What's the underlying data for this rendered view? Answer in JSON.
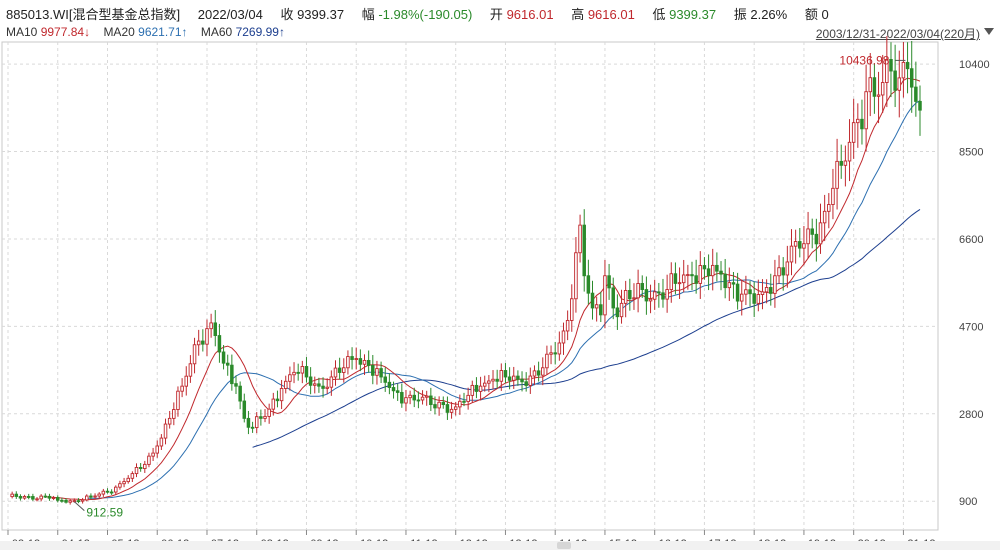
{
  "header": {
    "code": "885013.WI[混合型基金总指数]",
    "date": "2022/03/04",
    "close_label": "收",
    "close": "9399.37",
    "change_label": "幅",
    "change": "-1.98%(-190.05)",
    "open_label": "开",
    "open": "9616.01",
    "high_label": "高",
    "high": "9616.01",
    "low_label": "低",
    "low": "9399.37",
    "amp_label": "振",
    "amp": "2.26%",
    "vol_label": "额",
    "vol": "0"
  },
  "ma_line": {
    "ma10_label": "MA10",
    "ma10": "9977.84↓",
    "ma20_label": "MA20",
    "ma20": "9621.71↑",
    "ma60_label": "MA60",
    "ma60": "7269.99↑"
  },
  "range_text": "2003/12/31-2022/03/04(220月)",
  "colors": {
    "up": "#c0282d",
    "down": "#2b8a2b",
    "ma10": "#c0282d",
    "ma20": "#2c6fb0",
    "ma60": "#1d3f8f",
    "grid": "#d9d9d9"
  },
  "chart_data": {
    "type": "candlestick",
    "y_ticks": [
      900,
      2800,
      4700,
      6600,
      8500,
      10400
    ],
    "ylim": [
      600,
      10750
    ],
    "x_ticks": [
      "03-12",
      "04-12",
      "05-12",
      "06-12",
      "07-12",
      "08-12",
      "09-12",
      "10-12",
      "11-12",
      "12-12",
      "13-12",
      "14-12",
      "15-12",
      "16-12",
      "17-12",
      "18-12",
      "19-12",
      "20-12",
      "21-12"
    ],
    "annotations": [
      {
        "text": "10436.98",
        "value": 10436.98,
        "kind": "max"
      },
      {
        "text": "912.59",
        "value": 912.59,
        "kind": "min"
      }
    ],
    "months": 220,
    "key_points": [
      [
        0,
        1000
      ],
      [
        11,
        980
      ],
      [
        12,
        920
      ],
      [
        16,
        912.59
      ],
      [
        20,
        1000
      ],
      [
        24,
        1100
      ],
      [
        27,
        1280
      ],
      [
        30,
        1500
      ],
      [
        33,
        1700
      ],
      [
        36,
        2100
      ],
      [
        39,
        2700
      ],
      [
        42,
        3400
      ],
      [
        45,
        4300
      ],
      [
        48,
        4650
      ],
      [
        50,
        4500
      ],
      [
        52,
        3900
      ],
      [
        55,
        3400
      ],
      [
        57,
        2700
      ],
      [
        59,
        2500
      ],
      [
        61,
        2700
      ],
      [
        63,
        2900
      ],
      [
        66,
        3350
      ],
      [
        69,
        3700
      ],
      [
        72,
        3600
      ],
      [
        75,
        3400
      ],
      [
        78,
        3600
      ],
      [
        81,
        3800
      ],
      [
        84,
        4000
      ],
      [
        87,
        3850
      ],
      [
        90,
        3600
      ],
      [
        93,
        3300
      ],
      [
        96,
        3150
      ],
      [
        99,
        3100
      ],
      [
        102,
        3000
      ],
      [
        105,
        3000
      ],
      [
        108,
        2950
      ],
      [
        111,
        3200
      ],
      [
        114,
        3400
      ],
      [
        117,
        3550
      ],
      [
        120,
        3600
      ],
      [
        123,
        3550
      ],
      [
        126,
        3620
      ],
      [
        129,
        3800
      ],
      [
        132,
        4100
      ],
      [
        134,
        4600
      ],
      [
        136,
        5300
      ],
      [
        137,
        6300
      ],
      [
        138,
        6900
      ],
      [
        139,
        5800
      ],
      [
        141,
        5100
      ],
      [
        143,
        4950
      ],
      [
        144,
        5800
      ],
      [
        146,
        5100
      ],
      [
        148,
        5200
      ],
      [
        150,
        5300
      ],
      [
        153,
        5500
      ],
      [
        156,
        5450
      ],
      [
        159,
        5500
      ],
      [
        162,
        5650
      ],
      [
        165,
        5800
      ],
      [
        168,
        5950
      ],
      [
        171,
        5900
      ],
      [
        174,
        5650
      ],
      [
        177,
        5400
      ],
      [
        180,
        5200
      ],
      [
        182,
        5450
      ],
      [
        185,
        5800
      ],
      [
        188,
        6100
      ],
      [
        191,
        6400
      ],
      [
        194,
        6700
      ],
      [
        197,
        7200
      ],
      [
        199,
        7700
      ],
      [
        201,
        8200
      ],
      [
        203,
        8700
      ],
      [
        205,
        9200
      ],
      [
        207,
        9800
      ],
      [
        209,
        9700
      ],
      [
        211,
        10000
      ],
      [
        213,
        10250
      ],
      [
        215,
        10100
      ],
      [
        216,
        10436.98
      ],
      [
        217,
        10300
      ],
      [
        218,
        9900
      ],
      [
        219,
        9589.42
      ],
      [
        220,
        9399.37
      ]
    ]
  }
}
